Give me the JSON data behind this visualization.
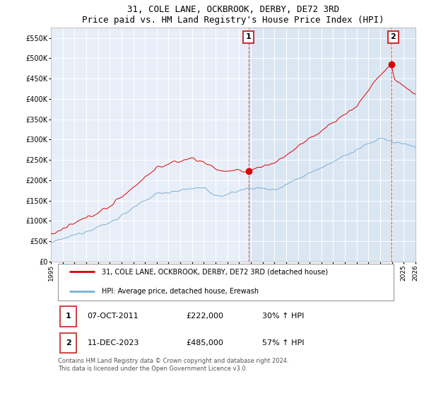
{
  "title": "31, COLE LANE, OCKBROOK, DERBY, DE72 3RD",
  "subtitle": "Price paid vs. HM Land Registry's House Price Index (HPI)",
  "ylabel_ticks": [
    0,
    50000,
    100000,
    150000,
    200000,
    250000,
    300000,
    350000,
    400000,
    450000,
    500000,
    550000
  ],
  "ylabel_labels": [
    "£0",
    "£50K",
    "£100K",
    "£150K",
    "£200K",
    "£250K",
    "£300K",
    "£350K",
    "£400K",
    "£450K",
    "£500K",
    "£550K"
  ],
  "xlim_years": [
    1995,
    2026
  ],
  "ylim": [
    0,
    575000
  ],
  "red_line_color": "#dd0000",
  "blue_line_color": "#7ab0d4",
  "annotation1_year": 2011.8,
  "annotation1_price": 222000,
  "annotation1_label": "1",
  "annotation2_year": 2023.95,
  "annotation2_price": 485000,
  "annotation2_label": "2",
  "vline1_year": 2011.8,
  "vline2_year": 2023.95,
  "legend_label_red": "31, COLE LANE, OCKBROOK, DERBY, DE72 3RD (detached house)",
  "legend_label_blue": "HPI: Average price, detached house, Erewash",
  "table_rows": [
    [
      "1",
      "07-OCT-2011",
      "£222,000",
      "30% ↑ HPI"
    ],
    [
      "2",
      "11-DEC-2023",
      "£485,000",
      "57% ↑ HPI"
    ]
  ],
  "footer_text": "Contains HM Land Registry data © Crown copyright and database right 2024.\nThis data is licensed under the Open Government Licence v3.0.",
  "background_color": "#e8eef8",
  "grid_color": "#ffffff",
  "shade_color": "#d0dff0"
}
